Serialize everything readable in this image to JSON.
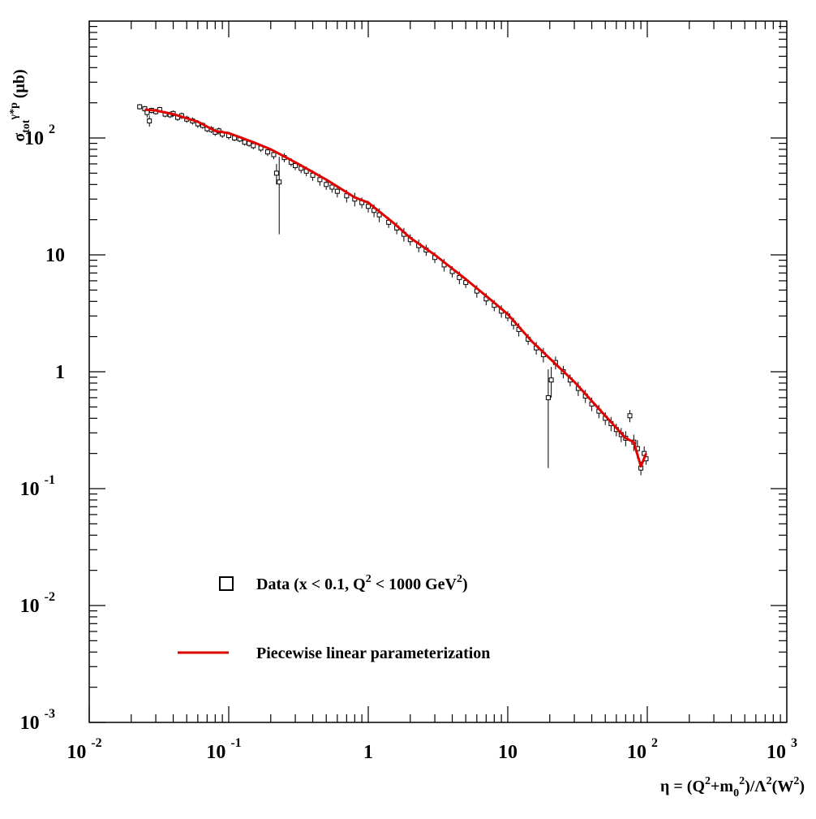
{
  "chart_data": {
    "type": "scatter",
    "title": "",
    "xscale": "log",
    "yscale": "log",
    "xlim": [
      0.01,
      1000
    ],
    "ylim": [
      0.001,
      1000
    ],
    "grid": false,
    "legend_position": "bottom-left",
    "xlabel": {
      "parts": [
        {
          "t": "η = (Q",
          "s": ""
        },
        {
          "t": "2",
          "s": "sup"
        },
        {
          "t": "+m",
          "s": ""
        },
        {
          "t": "0",
          "s": "sub"
        },
        {
          "t": "2",
          "s": "sup"
        },
        {
          "t": ")/Λ",
          "s": ""
        },
        {
          "t": "2",
          "s": "sup"
        },
        {
          "t": "(W",
          "s": ""
        },
        {
          "t": "2",
          "s": "sup"
        },
        {
          "t": ")",
          "s": ""
        }
      ]
    },
    "ylabel": {
      "parts": [
        {
          "t": "σ",
          "s": ""
        },
        {
          "t": "tot",
          "s": "sub"
        },
        {
          "t": "γ*p",
          "s": "sup"
        },
        {
          "t": " (μb)",
          "s": ""
        }
      ]
    },
    "x_ticks": [
      {
        "value": 0.01,
        "base": "10",
        "exp": "-2"
      },
      {
        "value": 0.1,
        "base": "10",
        "exp": "-1"
      },
      {
        "value": 1,
        "base": "1",
        "exp": ""
      },
      {
        "value": 10,
        "base": "10",
        "exp": ""
      },
      {
        "value": 100,
        "base": "10",
        "exp": "2"
      },
      {
        "value": 1000,
        "base": "10",
        "exp": "3"
      }
    ],
    "y_ticks": [
      {
        "value": 0.001,
        "base": "10",
        "exp": "-3"
      },
      {
        "value": 0.01,
        "base": "10",
        "exp": "-2"
      },
      {
        "value": 0.1,
        "base": "10",
        "exp": "-1"
      },
      {
        "value": 1,
        "base": "1",
        "exp": ""
      },
      {
        "value": 10,
        "base": "10",
        "exp": ""
      },
      {
        "value": 100,
        "base": "10",
        "exp": "2"
      }
    ],
    "series": [
      {
        "name": "Data (x < 0.1, Q² < 1000 GeV²)",
        "kind": "points",
        "marker": "open-square",
        "color": "#000000",
        "points": [
          [
            0.023,
            185,
            10
          ],
          [
            0.025,
            178,
            10
          ],
          [
            0.026,
            165,
            15
          ],
          [
            0.027,
            140,
            15
          ],
          [
            0.028,
            172,
            10
          ],
          [
            0.03,
            168,
            10
          ],
          [
            0.032,
            175,
            10
          ],
          [
            0.035,
            160,
            10
          ],
          [
            0.038,
            158,
            10
          ],
          [
            0.04,
            162,
            10
          ],
          [
            0.043,
            150,
            10
          ],
          [
            0.046,
            155,
            10
          ],
          [
            0.05,
            145,
            10
          ],
          [
            0.055,
            140,
            10
          ],
          [
            0.06,
            132,
            10
          ],
          [
            0.065,
            128,
            8
          ],
          [
            0.07,
            120,
            8
          ],
          [
            0.075,
            118,
            8
          ],
          [
            0.08,
            112,
            8
          ],
          [
            0.085,
            115,
            8
          ],
          [
            0.09,
            108,
            8
          ],
          [
            0.1,
            105,
            8
          ],
          [
            0.11,
            100,
            6
          ],
          [
            0.12,
            98,
            6
          ],
          [
            0.13,
            92,
            6
          ],
          [
            0.14,
            90,
            6
          ],
          [
            0.15,
            86,
            6
          ],
          [
            0.17,
            82,
            6
          ],
          [
            0.19,
            76,
            6
          ],
          [
            0.21,
            72,
            6
          ],
          [
            0.22,
            50,
            10
          ],
          [
            0.23,
            42,
            27
          ],
          [
            0.25,
            68,
            6
          ],
          [
            0.28,
            62,
            5
          ],
          [
            0.3,
            58,
            5
          ],
          [
            0.33,
            55,
            5
          ],
          [
            0.36,
            52,
            5
          ],
          [
            0.4,
            48,
            5
          ],
          [
            0.45,
            44,
            5
          ],
          [
            0.5,
            40,
            4
          ],
          [
            0.55,
            38,
            4
          ],
          [
            0.6,
            35,
            4
          ],
          [
            0.7,
            32,
            4
          ],
          [
            0.8,
            30,
            4
          ],
          [
            0.9,
            28,
            3
          ],
          [
            1.0,
            26,
            3
          ],
          [
            1.1,
            24,
            3
          ],
          [
            1.2,
            22,
            3
          ],
          [
            1.4,
            19,
            2
          ],
          [
            1.6,
            17,
            2
          ],
          [
            1.8,
            15,
            2
          ],
          [
            2.0,
            13.5,
            1.5
          ],
          [
            2.3,
            12,
            1.5
          ],
          [
            2.6,
            11,
            1.2
          ],
          [
            3.0,
            9.5,
            1
          ],
          [
            3.5,
            8.2,
            1
          ],
          [
            4.0,
            7.2,
            0.8
          ],
          [
            4.5,
            6.4,
            0.8
          ],
          [
            5.0,
            5.8,
            0.6
          ],
          [
            6.0,
            4.9,
            0.6
          ],
          [
            7.0,
            4.2,
            0.5
          ],
          [
            8.0,
            3.7,
            0.4
          ],
          [
            9.0,
            3.3,
            0.4
          ],
          [
            10.0,
            3.0,
            0.3
          ],
          [
            11.0,
            2.6,
            0.3
          ],
          [
            12.0,
            2.3,
            0.3
          ],
          [
            14.0,
            1.9,
            0.2
          ],
          [
            16.0,
            1.6,
            0.2
          ],
          [
            18.0,
            1.4,
            0.2
          ],
          [
            19.5,
            0.6,
            0.45
          ],
          [
            20.5,
            0.85,
            0.25
          ],
          [
            22.0,
            1.2,
            0.15
          ],
          [
            25.0,
            1.0,
            0.12
          ],
          [
            28.0,
            0.85,
            0.1
          ],
          [
            32.0,
            0.72,
            0.1
          ],
          [
            36.0,
            0.62,
            0.08
          ],
          [
            40.0,
            0.53,
            0.07
          ],
          [
            45.0,
            0.46,
            0.06
          ],
          [
            50.0,
            0.4,
            0.05
          ],
          [
            55.0,
            0.36,
            0.05
          ],
          [
            60.0,
            0.32,
            0.04
          ],
          [
            65.0,
            0.29,
            0.04
          ],
          [
            70.0,
            0.27,
            0.04
          ],
          [
            75.0,
            0.42,
            0.05
          ],
          [
            80.0,
            0.25,
            0.04
          ],
          [
            85.0,
            0.22,
            0.04
          ],
          [
            90.0,
            0.15,
            0.02
          ],
          [
            95.0,
            0.2,
            0.03
          ],
          [
            98.0,
            0.18,
            0.02
          ]
        ]
      },
      {
        "name": "Piecewise linear parameterization",
        "kind": "line",
        "color": "#e00000",
        "points": [
          [
            0.025,
            175
          ],
          [
            0.03,
            172
          ],
          [
            0.04,
            160
          ],
          [
            0.06,
            138
          ],
          [
            0.08,
            115
          ],
          [
            0.1,
            110
          ],
          [
            0.15,
            92
          ],
          [
            0.2,
            80
          ],
          [
            0.3,
            62
          ],
          [
            0.5,
            44
          ],
          [
            0.8,
            31
          ],
          [
            1.0,
            28
          ],
          [
            1.5,
            19
          ],
          [
            2.0,
            14
          ],
          [
            3.0,
            10
          ],
          [
            5.0,
            6.2
          ],
          [
            8.0,
            3.9
          ],
          [
            10.0,
            3.1
          ],
          [
            15.0,
            1.8
          ],
          [
            20.0,
            1.3
          ],
          [
            30.0,
            0.82
          ],
          [
            50.0,
            0.42
          ],
          [
            70.0,
            0.27
          ],
          [
            80.0,
            0.25
          ],
          [
            90.0,
            0.155
          ],
          [
            98.0,
            0.2
          ]
        ]
      }
    ]
  }
}
